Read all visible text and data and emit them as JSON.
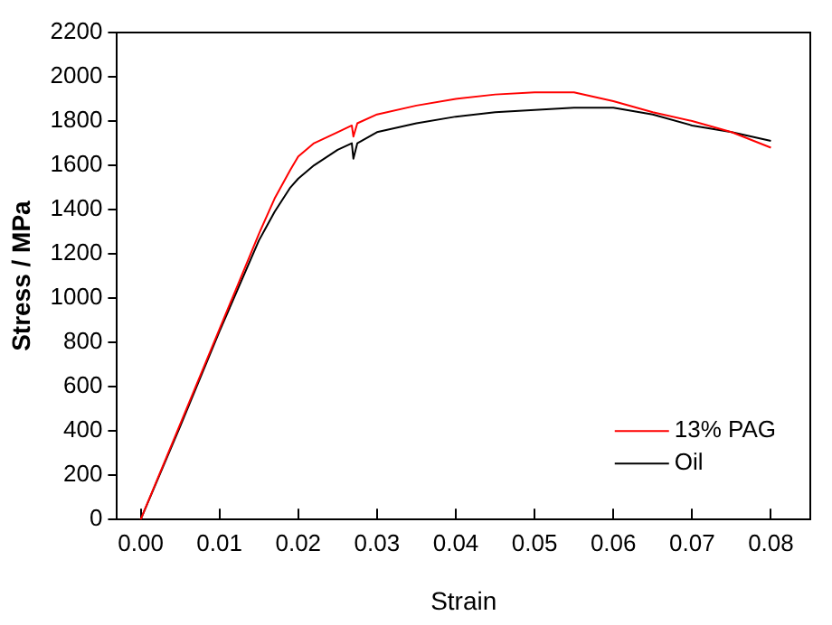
{
  "chart_data": {
    "type": "line",
    "xlabel": "Strain",
    "ylabel": "Stress / MPa",
    "xlim": [
      -0.003,
      0.085
    ],
    "ylim": [
      0,
      2200
    ],
    "xticks": [
      {
        "value": 0,
        "label": "0.00"
      },
      {
        "value": 0.01,
        "label": "0.01"
      },
      {
        "value": 0.02,
        "label": "0.02"
      },
      {
        "value": 0.03,
        "label": "0.03"
      },
      {
        "value": 0.04,
        "label": "0.04"
      },
      {
        "value": 0.05,
        "label": "0.05"
      },
      {
        "value": 0.06,
        "label": "0.06"
      },
      {
        "value": 0.07,
        "label": "0.07"
      },
      {
        "value": 0.08,
        "label": "0.08"
      }
    ],
    "yticks": [
      0,
      200,
      400,
      600,
      800,
      1000,
      1200,
      1400,
      1600,
      1800,
      2000,
      2200
    ],
    "grid": false,
    "legend": "bottom right",
    "marker": "none",
    "line_style": "solid",
    "series": [
      {
        "name": "13% PAG",
        "color": "#ff0000",
        "x": [
          0,
          0.005,
          0.01,
          0.015,
          0.017,
          0.019,
          0.02,
          0.022,
          0.025,
          0.0268,
          0.027,
          0.0275,
          0.03,
          0.035,
          0.04,
          0.045,
          0.05,
          0.055,
          0.06,
          0.065,
          0.07,
          0.075,
          0.08
        ],
        "values": [
          0,
          430,
          860,
          1290,
          1450,
          1580,
          1640,
          1700,
          1750,
          1780,
          1730,
          1790,
          1830,
          1870,
          1900,
          1920,
          1930,
          1930,
          1890,
          1840,
          1800,
          1750,
          1680
        ]
      },
      {
        "name": "Oil",
        "color": "#000000",
        "x": [
          0,
          0.005,
          0.01,
          0.015,
          0.017,
          0.019,
          0.02,
          0.022,
          0.025,
          0.0268,
          0.027,
          0.0275,
          0.03,
          0.035,
          0.04,
          0.045,
          0.05,
          0.055,
          0.06,
          0.065,
          0.07,
          0.075,
          0.08
        ],
        "values": [
          0,
          420,
          850,
          1260,
          1390,
          1500,
          1540,
          1600,
          1670,
          1700,
          1630,
          1700,
          1750,
          1790,
          1820,
          1840,
          1850,
          1860,
          1860,
          1830,
          1780,
          1750,
          1710
        ]
      }
    ]
  }
}
